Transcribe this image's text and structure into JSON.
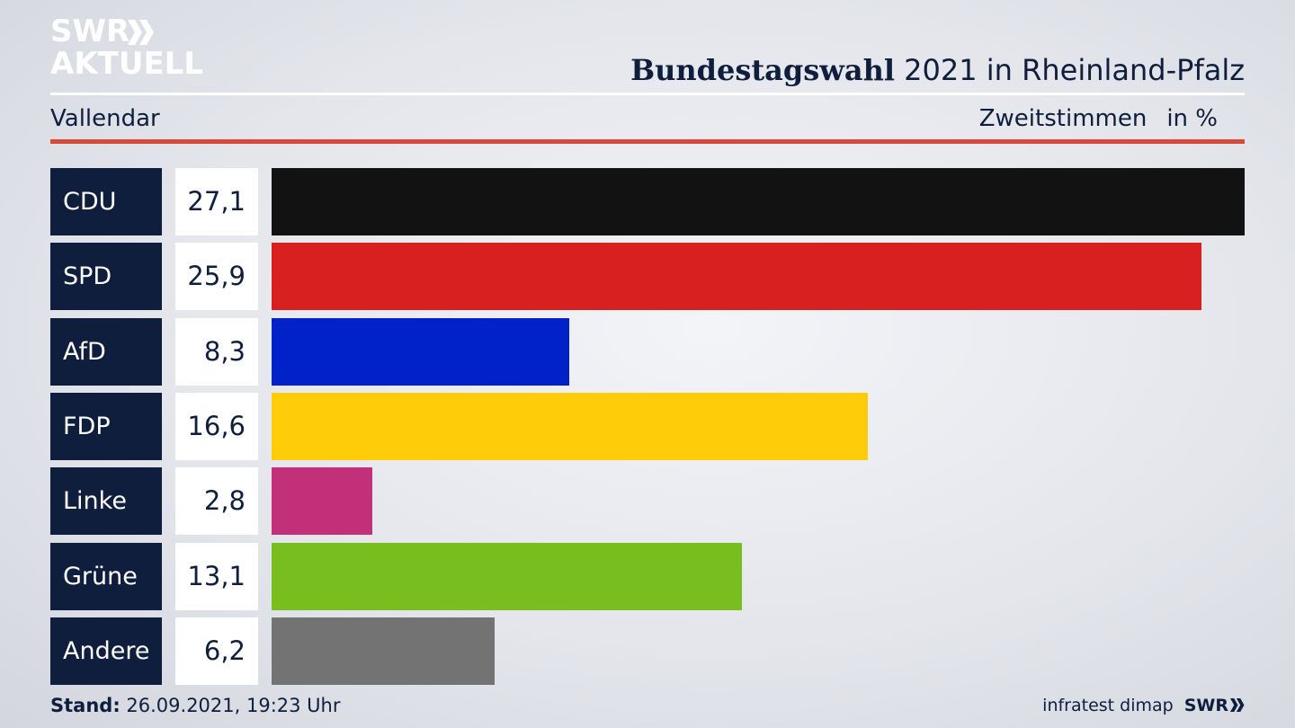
{
  "header": {
    "logo_line1": "SWR",
    "logo_line2": "AKTUELL",
    "title_bold": "Bundestagswahl",
    "title_rest": " 2021 in Rheinland-Pfalz",
    "region": "Vallendar",
    "vote_type": "Zweitstimmen",
    "unit": "in %"
  },
  "chart_data": {
    "type": "bar",
    "orientation": "horizontal",
    "categories": [
      "CDU",
      "SPD",
      "AfD",
      "FDP",
      "Linke",
      "Grüne",
      "Andere"
    ],
    "values": [
      27.1,
      25.9,
      8.3,
      16.6,
      2.8,
      13.1,
      6.2
    ],
    "value_labels": [
      "27,1",
      "25,9",
      "8,3",
      "16,6",
      "2,8",
      "13,1",
      "6,2"
    ],
    "colors": [
      "#121212",
      "#d92020",
      "#0022c8",
      "#ffcc0a",
      "#c2307a",
      "#78be1e",
      "#737373"
    ],
    "xlim": [
      0,
      27.1
    ]
  },
  "footer": {
    "stand_label": "Stand:",
    "stand_value": " 26.09.2021, 19:23 Uhr",
    "source": "infratest dimap",
    "source_brand": "SWR"
  }
}
